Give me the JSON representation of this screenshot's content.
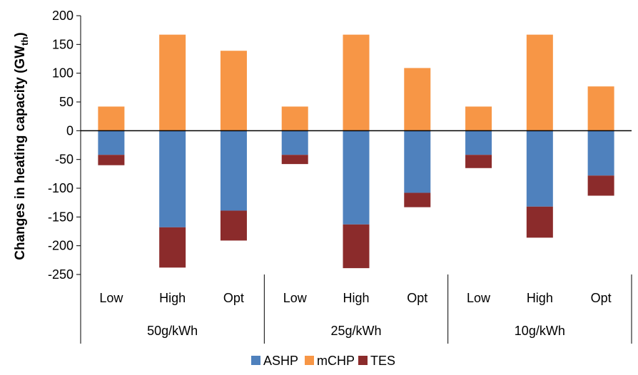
{
  "chart_data": {
    "type": "bar",
    "stacked": true,
    "groups": [
      "50g/kWh",
      "25g/kWh",
      "10g/kWh"
    ],
    "categories": [
      "Low",
      "High",
      "Opt",
      "Low",
      "High",
      "Opt",
      "Low",
      "High",
      "Opt"
    ],
    "series": [
      {
        "name": "ASHP",
        "color": "#4F81BD",
        "values": [
          -42,
          -168,
          -139,
          -42,
          -163,
          -108,
          -42,
          -132,
          -78
        ]
      },
      {
        "name": "mCHP",
        "color": "#F79646",
        "values": [
          42,
          167,
          139,
          42,
          167,
          109,
          42,
          167,
          77
        ]
      },
      {
        "name": "TES",
        "color": "#8B2B2B",
        "values": [
          -18,
          -70,
          -52,
          -16,
          -76,
          -25,
          -23,
          -54,
          -35
        ]
      }
    ],
    "ylabel_main": "Changes in heating capacity (GW",
    "ylabel_sub": "th",
    "ylabel_close": ")",
    "ylim": [
      -250,
      200
    ],
    "yticks": [
      200,
      150,
      100,
      50,
      0,
      -50,
      -100,
      -150,
      -200,
      -250
    ],
    "grid": false,
    "legend_position": "bottom"
  }
}
